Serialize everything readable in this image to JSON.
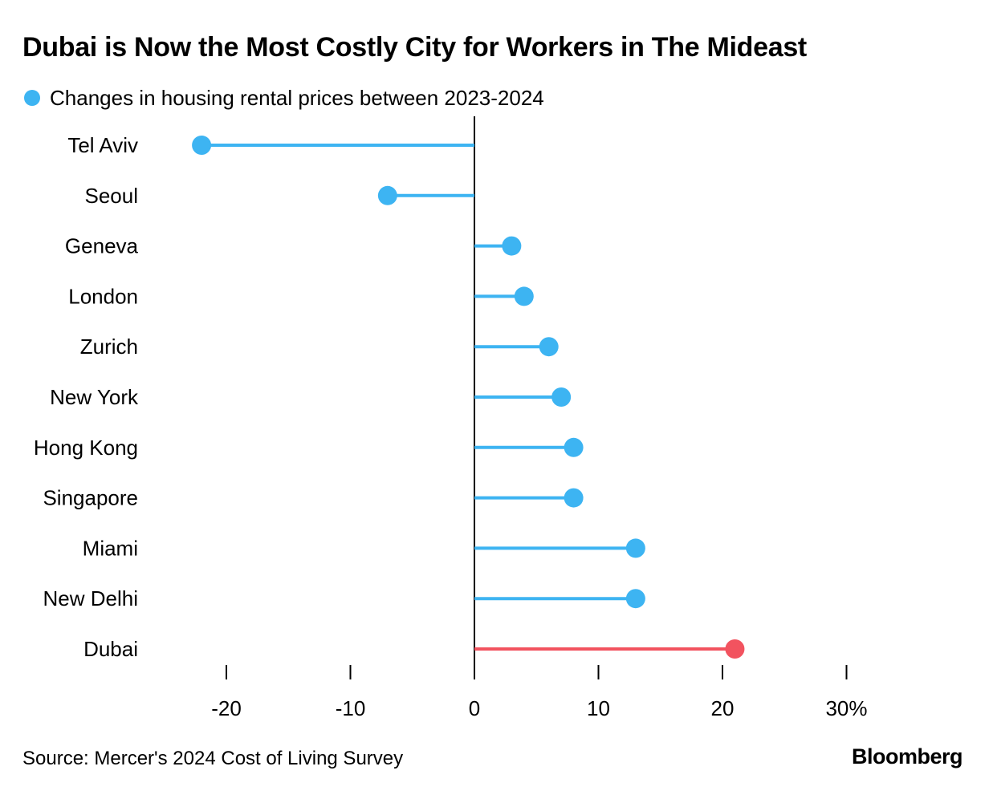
{
  "chart_data": {
    "type": "lollipop",
    "title": "Dubai is Now the Most Costly City for Workers in The Mideast",
    "legend": [
      {
        "label": "Changes in housing rental prices between 2023-2024",
        "color": "#3db4f2"
      }
    ],
    "categories": [
      "Tel Aviv",
      "Seoul",
      "Geneva",
      "London",
      "Zurich",
      "New York",
      "Hong Kong",
      "Singapore",
      "Miami",
      "New Delhi",
      "Dubai"
    ],
    "series": [
      {
        "name": "Changes in housing rental prices between 2023-2024",
        "values": [
          -22,
          -7,
          3,
          4,
          6,
          7,
          8,
          8,
          13,
          13,
          21
        ]
      }
    ],
    "highlight": {
      "category": "Dubai",
      "color": "#f2535f"
    },
    "xlim": [
      -20,
      30
    ],
    "xticks": [
      -20,
      -10,
      0,
      10,
      20,
      30
    ],
    "xtick_labels": [
      "-20",
      "-10",
      "0",
      "10",
      "20",
      "30%"
    ],
    "xlabel": "",
    "ylabel": "",
    "grid": false
  },
  "colors": {
    "series": "#3db4f2",
    "highlight": "#f2535f",
    "zero_line": "#000000"
  },
  "footer": {
    "source": "Source: Mercer's 2024 Cost of Living Survey",
    "brand": "Bloomberg"
  }
}
